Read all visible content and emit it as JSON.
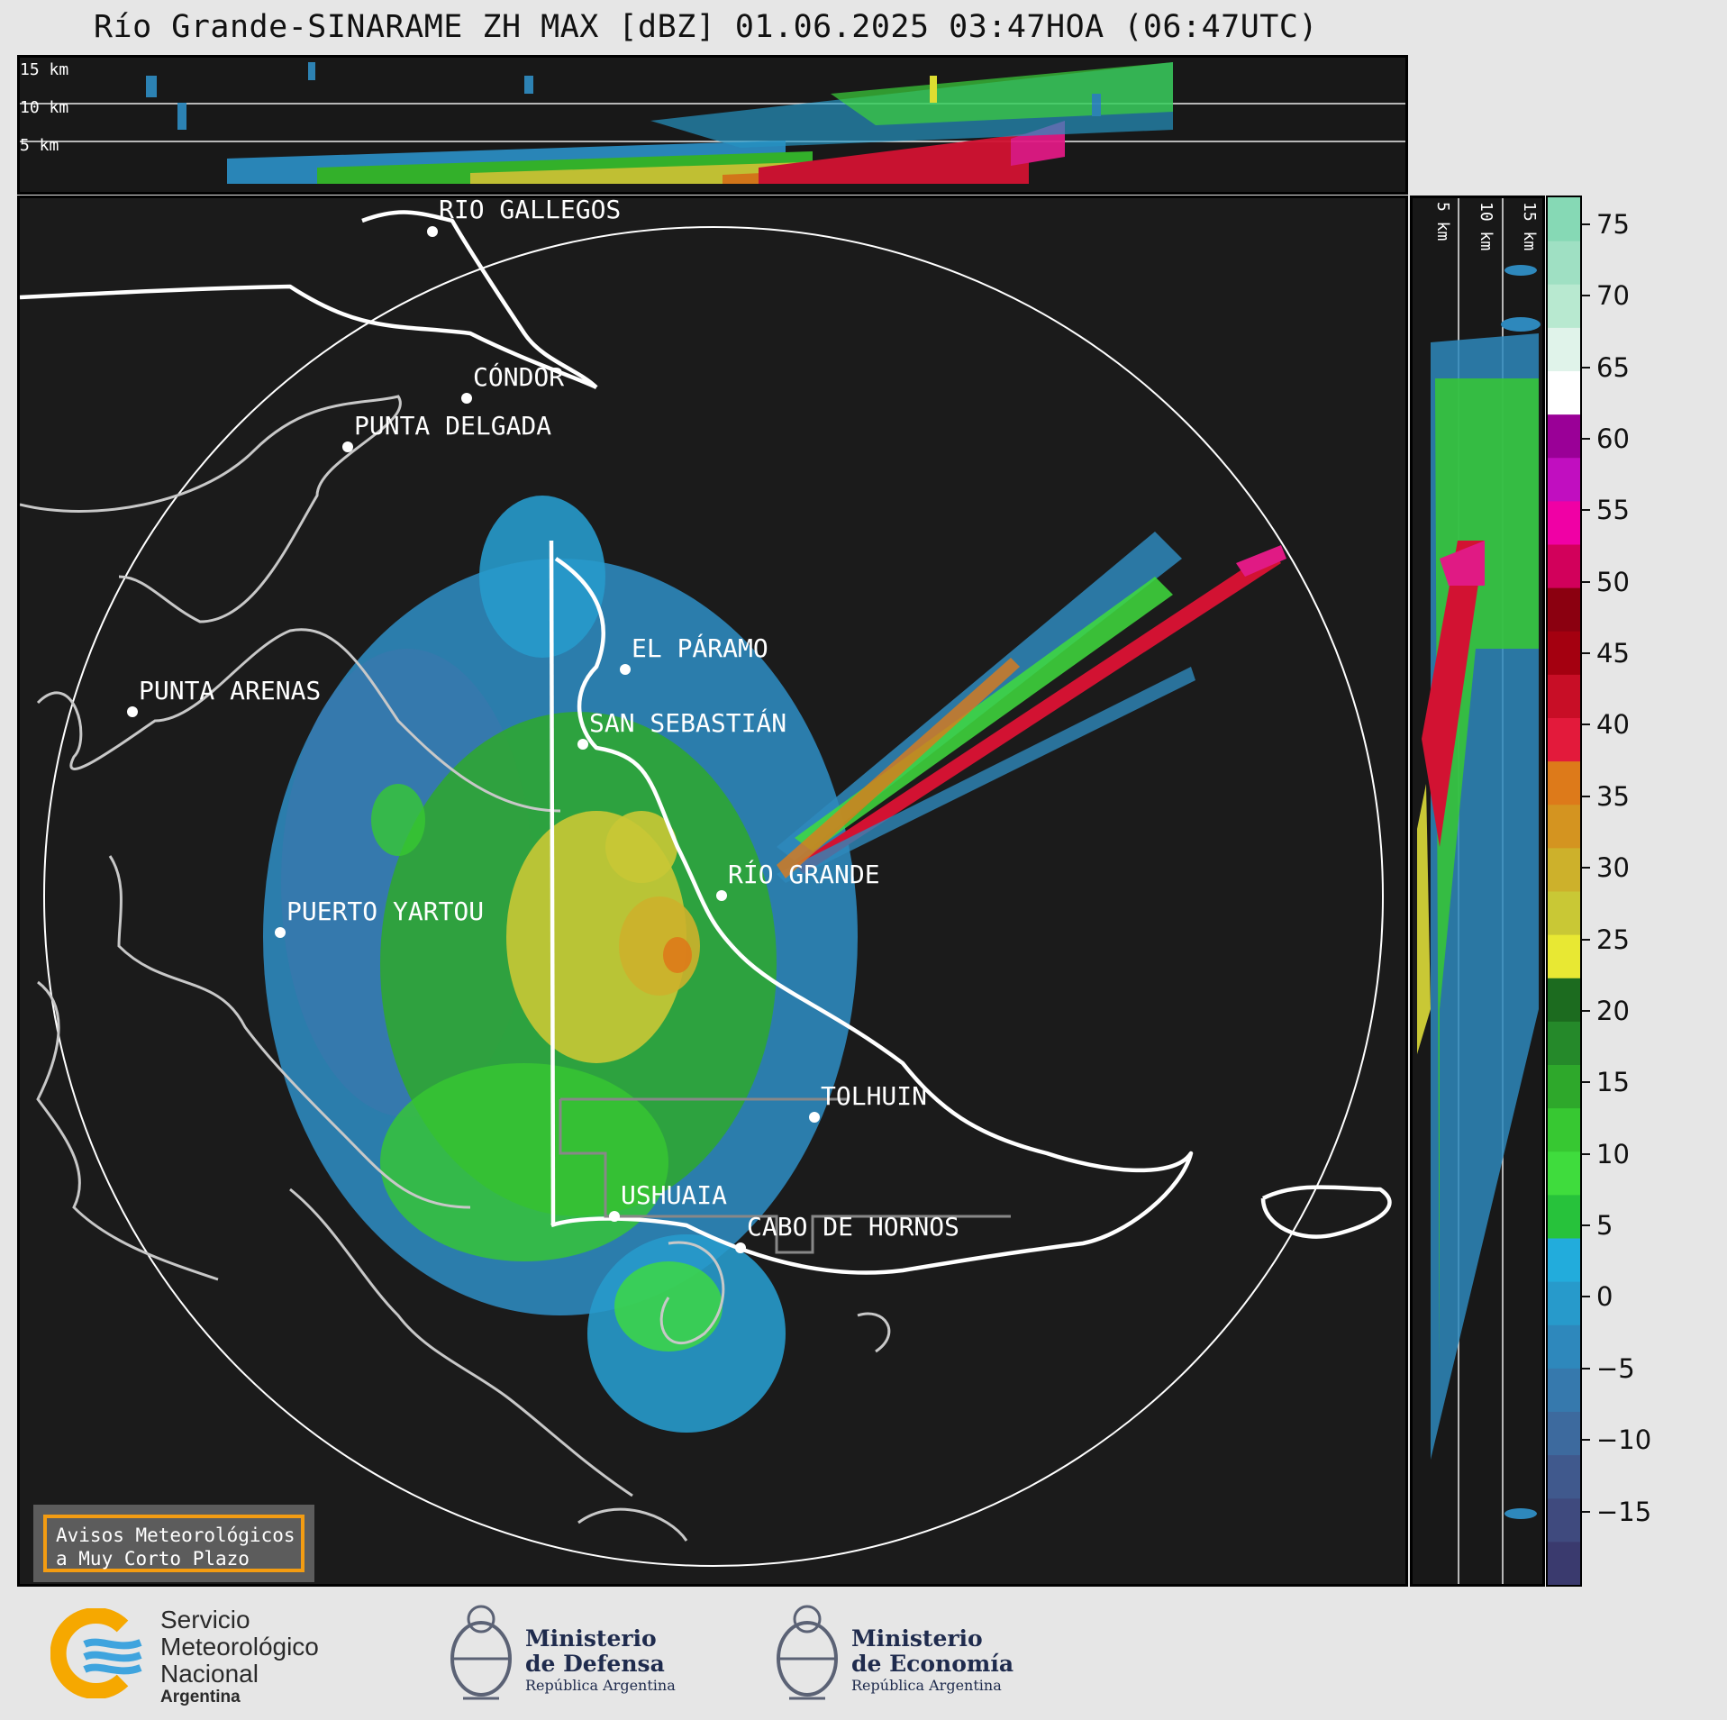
{
  "title": "Río Grande-SINARAME ZH MAX [dBZ] 01.06.2025 03:47HOA (06:47UTC)",
  "cross_section_ew": {
    "height_labels": [
      "15 km",
      "10 km",
      "5 km"
    ]
  },
  "cross_section_ns": {
    "height_labels": [
      "5 km",
      "10 km",
      "15 km"
    ]
  },
  "colorbar": {
    "unit": "dBZ",
    "ticks": [
      "75",
      "70",
      "65",
      "60",
      "55",
      "50",
      "45",
      "40",
      "35",
      "30",
      "25",
      "20",
      "15",
      "10",
      "5",
      "0",
      "−5",
      "−10",
      "−15"
    ],
    "range": [
      -20,
      77
    ],
    "colors": [
      "#3a3a6e",
      "#3f4a7e",
      "#40598d",
      "#3d6a9e",
      "#3679ad",
      "#2e88bc",
      "#279acb",
      "#22acdc",
      "#27c23b",
      "#3fdc3d",
      "#37c832",
      "#2ea82b",
      "#25892a",
      "#1c6b1f",
      "#e8e833",
      "#c9c835",
      "#cdb12b",
      "#d49420",
      "#dd7a1a",
      "#e31a3b",
      "#c80e26",
      "#a40010",
      "#8b0010",
      "#d2005b",
      "#f000a5",
      "#c10ec0",
      "#9a0097",
      "#ffffff",
      "#e0f3ea",
      "#b8e9d0",
      "#9fe0c3",
      "#86d9b5"
    ]
  },
  "places": [
    {
      "name": "RÍO GALLEGOS"
    },
    {
      "name": "CÓNDOR"
    },
    {
      "name": "PUNTA DELGADA"
    },
    {
      "name": "PUNTA ARENAS"
    },
    {
      "name": "EL PÁRAMO"
    },
    {
      "name": "SAN SEBASTIÁN"
    },
    {
      "name": "RÍO GRANDE"
    },
    {
      "name": "PUERTO YARTOU"
    },
    {
      "name": "TOLHUIN"
    },
    {
      "name": "USHUAIA"
    },
    {
      "name": "CABO DE HORNOS"
    }
  ],
  "notice": {
    "line1": "Avisos Meteorológicos",
    "line2": "a Muy Corto Plazo"
  },
  "footer": {
    "smn": {
      "line1": "Servicio",
      "line2": "Meteorológico",
      "line3": "Nacional",
      "line4": "Argentina"
    },
    "defensa": {
      "line1": "Ministerio",
      "line2": "de Defensa",
      "line3": "República Argentina"
    },
    "economia": {
      "line1": "Ministerio",
      "line2": "de Economía",
      "line3": "República Argentina"
    }
  }
}
